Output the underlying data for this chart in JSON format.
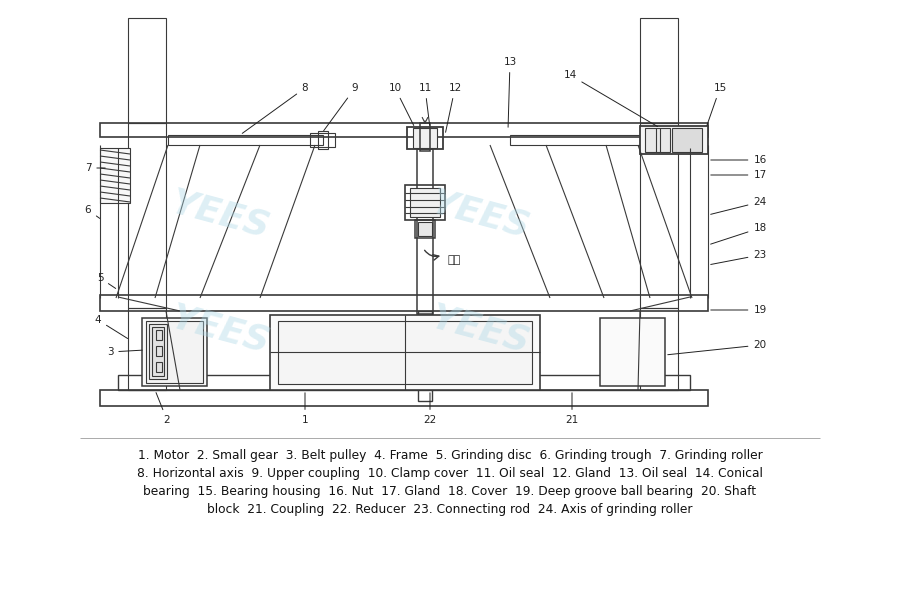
{
  "bg_color": "#ffffff",
  "line_color": "#3a3a3a",
  "line_width": 0.8,
  "fig_width": 9.0,
  "fig_height": 6.0,
  "legend_lines": [
    "1. Motor  2. Small gear  3. Belt pulley  4. Frame  5. Grinding disc  6. Grinding trough  7. Grinding roller",
    "8. Horizontal axis  9. Upper coupling  10. Clamp cover  11. Oil seal  12. Gland  13. Oil seal  14. Conical",
    "bearing  15. Bearing housing  16. Nut  17. Gland  18. Cover  19. Deep groove ball bearing  20. Shaft",
    "block  21. Coupling  22. Reducer  23. Connecting rod  24. Axis of grinding roller"
  ],
  "rotation_text": "转向",
  "watermark_color": "#add8e6",
  "watermark_alpha": 0.4
}
